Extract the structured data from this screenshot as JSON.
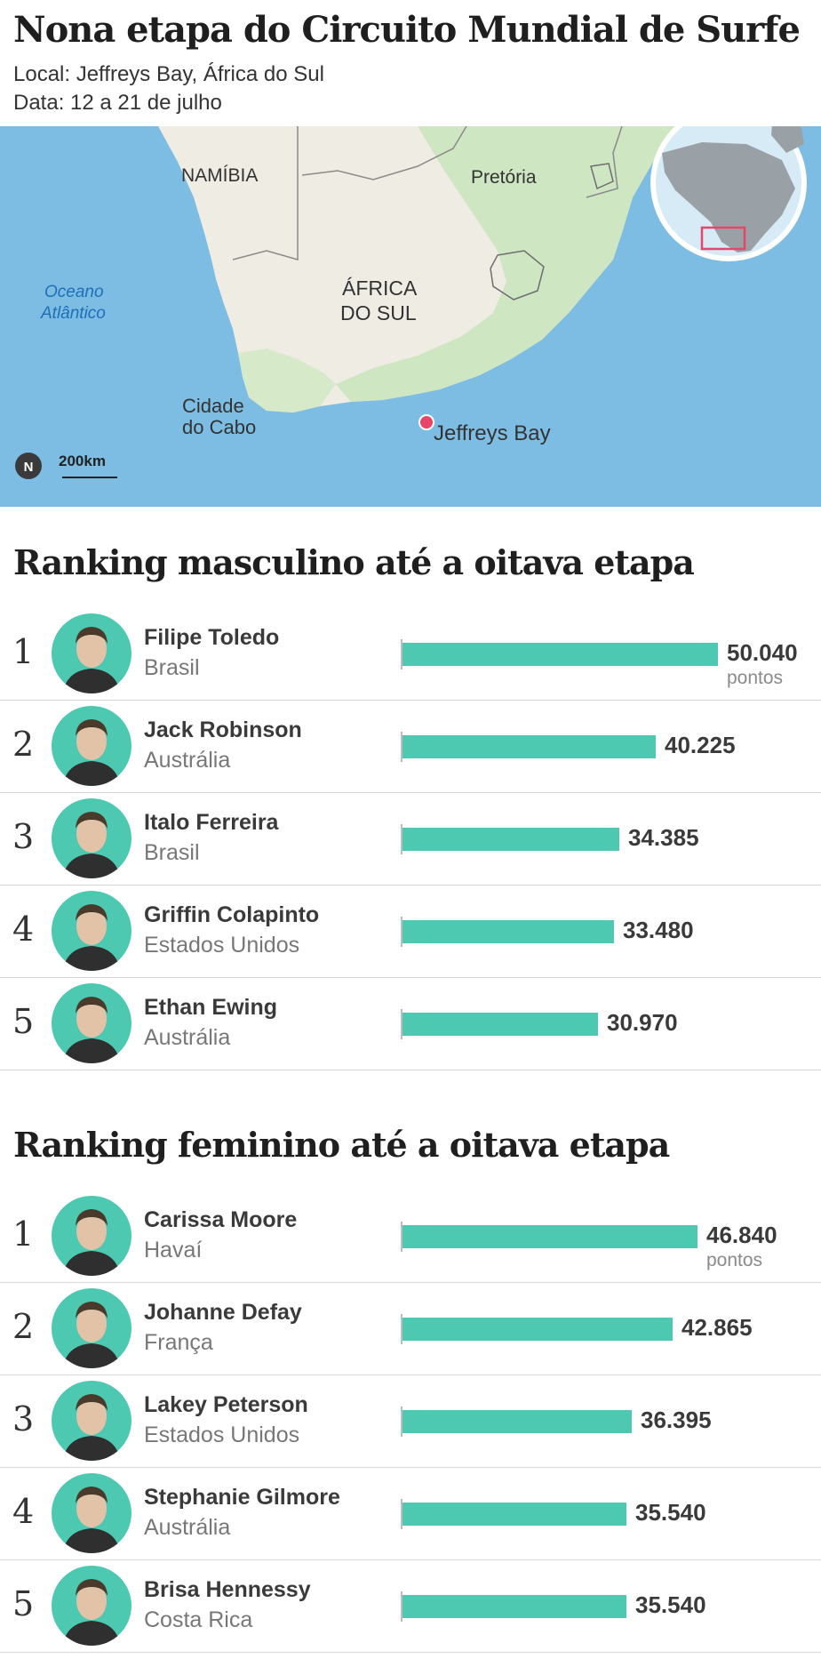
{
  "header": {
    "title": "Nona etapa do Circuito Mundial de Surfe",
    "location": "Local: Jeffreys Bay, África do Sul",
    "dates": "Data: 12 a 21 de julho"
  },
  "map": {
    "labels": {
      "namibia": "NAMÍBIA",
      "pretoria": "Pretória",
      "country_line1": "ÁFRICA",
      "country_line2": "DO SUL",
      "ocean_line1": "Oceano",
      "ocean_line2": "Atlântico",
      "cape_line1": "Cidade",
      "cape_line2": "do Cabo",
      "jeffreys": "Jeffreys Bay",
      "north": "N",
      "scale": "200km"
    },
    "colors": {
      "sea": "#7dbde3",
      "land": "#efece3",
      "green": "#cfe6c2",
      "marker": "#e8456a"
    }
  },
  "chart_data": [
    {
      "type": "bar",
      "title": "Ranking masculino até a oitava etapa",
      "unit": "pontos",
      "categories": [
        "Filipe Toledo",
        "Jack Robinson",
        "Italo Ferreira",
        "Griffin Colapinto",
        "Ethan Ewing"
      ],
      "ranks": [
        "1",
        "2",
        "3",
        "4",
        "5"
      ],
      "countries": [
        "Brasil",
        "Austrália",
        "Brasil",
        "Estados Unidos",
        "Austrália"
      ],
      "values": [
        50040,
        40225,
        34385,
        33480,
        30970
      ],
      "value_labels": [
        "50.040",
        "40.225",
        "34.385",
        "33.480",
        "30.970"
      ],
      "color": "#4ec9b1"
    },
    {
      "type": "bar",
      "title": "Ranking feminino até a oitava etapa",
      "unit": "pontos",
      "categories": [
        "Carissa Moore",
        "Johanne Defay",
        "Lakey Peterson",
        "Stephanie Gilmore",
        "Brisa Hennessy"
      ],
      "ranks": [
        "1",
        "2",
        "3",
        "4",
        "5"
      ],
      "countries": [
        "Havaí",
        "França",
        "Estados Unidos",
        "Austrália",
        "Costa Rica"
      ],
      "values": [
        46840,
        42865,
        36395,
        35540,
        35540
      ],
      "value_labels": [
        "46.840",
        "42.865",
        "36.395",
        "35.540",
        "35.540"
      ],
      "color": "#4ec9b1"
    }
  ]
}
